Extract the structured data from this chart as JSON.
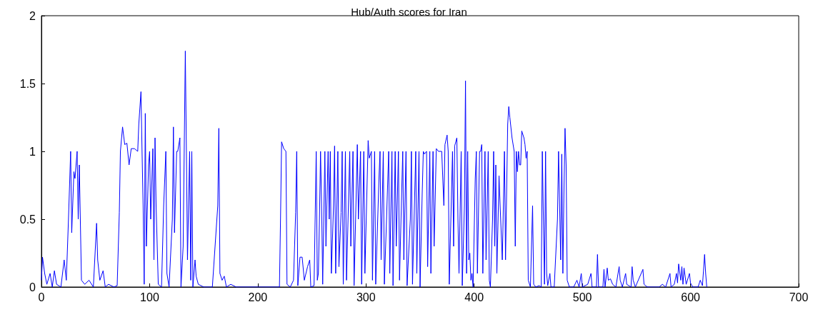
{
  "chart_data": {
    "type": "line",
    "title": "Hub/Auth scores for Iran",
    "xlim": [
      0,
      700
    ],
    "xticks": [
      0,
      100,
      200,
      300,
      400,
      500,
      600,
      700
    ],
    "ylim": [
      0,
      2
    ],
    "yticks": [
      0,
      0.5,
      1,
      1.5,
      2
    ],
    "grid": false,
    "marker": "none",
    "line_style": "solid",
    "series": [
      {
        "color": "#0000ff",
        "x": [
          0,
          1,
          3,
          5,
          8,
          10,
          12,
          14,
          18,
          21,
          23,
          25,
          27,
          28,
          30,
          31,
          33,
          34,
          35,
          37,
          40,
          44,
          48,
          51,
          52,
          54,
          57,
          59,
          62,
          67,
          70,
          72,
          73,
          75,
          77,
          79,
          81,
          83,
          86,
          89,
          90,
          92,
          93,
          94,
          95,
          96,
          97,
          99,
          100,
          101,
          103,
          104,
          105,
          106,
          108,
          111,
          113,
          115,
          116,
          118,
          121,
          122,
          123,
          125,
          126,
          128,
          129,
          131,
          133,
          134,
          135,
          137,
          138,
          139,
          140,
          142,
          143,
          145,
          150,
          158,
          163,
          164,
          165,
          167,
          169,
          171,
          175,
          180,
          220,
          221,
          222,
          224,
          226,
          227,
          230,
          233,
          235,
          236,
          237,
          239,
          241,
          243,
          246,
          248,
          249,
          252,
          253,
          254,
          255,
          256,
          257,
          258,
          259,
          260,
          262,
          263,
          265,
          266,
          267,
          268,
          270,
          271,
          272,
          274,
          275,
          277,
          278,
          279,
          281,
          282,
          285,
          286,
          288,
          289,
          292,
          293,
          295,
          296,
          298,
          299,
          302,
          303,
          305,
          306,
          308,
          309,
          312,
          313,
          314,
          316,
          317,
          319,
          321,
          322,
          324,
          325,
          327,
          328,
          330,
          331,
          333,
          334,
          335,
          337,
          338,
          341,
          342,
          343,
          346,
          347,
          349,
          350,
          352,
          353,
          354,
          356,
          357,
          359,
          360,
          362,
          363,
          365,
          367,
          370,
          372,
          373,
          375,
          376,
          377,
          380,
          381,
          382,
          384,
          385,
          386,
          388,
          389,
          391,
          392,
          393,
          394,
          395,
          396,
          397,
          398,
          399,
          401,
          402,
          403,
          405,
          406,
          407,
          408,
          410,
          411,
          413,
          414,
          415,
          417,
          418,
          419,
          420,
          421,
          423,
          424,
          426,
          428,
          429,
          431,
          432,
          433,
          435,
          437,
          438,
          439,
          440,
          441,
          442,
          443,
          444,
          446,
          447,
          448,
          449,
          450,
          452,
          453,
          454,
          455,
          457,
          460,
          462,
          463,
          464,
          465,
          466,
          467,
          468,
          470,
          471,
          474,
          477,
          478,
          480,
          481,
          482,
          483,
          484,
          485,
          486,
          488,
          492,
          495,
          497,
          499,
          500,
          505,
          508,
          509,
          513,
          514,
          515,
          519,
          520,
          521,
          523,
          524,
          526,
          528,
          531,
          534,
          535,
          537,
          540,
          541,
          545,
          546,
          547,
          549,
          556,
          557,
          560,
          571,
          574,
          577,
          581,
          582,
          585,
          587,
          588,
          589,
          591,
          592,
          593,
          594,
          596,
          599,
          600,
          602,
          607,
          609,
          611,
          612,
          613,
          614,
          615
        ],
        "values": [
          0.05,
          0.22,
          0.1,
          0.02,
          0.1,
          0,
          0.12,
          0.02,
          0,
          0.2,
          0.05,
          0.5,
          1,
          0.4,
          0.85,
          0.8,
          1,
          0.5,
          0.9,
          0.05,
          0.02,
          0.05,
          0,
          0.47,
          0.2,
          0.05,
          0.12,
          0,
          0.02,
          0,
          0.01,
          0.55,
          1,
          1.18,
          1.05,
          1.06,
          0.9,
          1.02,
          1.02,
          1,
          1.2,
          1.44,
          1,
          0.6,
          0.02,
          1.28,
          0.3,
          0.9,
          1,
          0.5,
          1.02,
          0.2,
          1.1,
          0.6,
          0.02,
          0,
          0.6,
          1,
          0.1,
          0,
          0.5,
          1.18,
          0.4,
          1,
          1,
          1.1,
          0,
          0.3,
          1.74,
          1,
          0.2,
          1,
          0.05,
          1,
          0,
          0.2,
          0.08,
          0.02,
          0,
          0,
          0.6,
          1.17,
          0.1,
          0.05,
          0.08,
          0,
          0.02,
          0,
          0,
          0.5,
          1.07,
          1.02,
          1,
          0.02,
          0,
          0.05,
          0.55,
          1,
          0.01,
          0.22,
          0.22,
          0.05,
          0.15,
          0.2,
          0,
          0.01,
          0.5,
          1,
          0.05,
          0.1,
          0.5,
          1,
          0.6,
          0.02,
          1,
          0.3,
          1,
          0.5,
          1,
          0.1,
          0.6,
          1.04,
          0.1,
          1,
          0.15,
          0.55,
          1,
          0.02,
          1,
          0.05,
          1,
          0.3,
          1,
          0.01,
          1.05,
          0.5,
          1,
          0.02,
          1,
          0.1,
          1.08,
          0.95,
          1,
          0.05,
          1,
          0.02,
          0.8,
          1,
          0.2,
          1,
          0.02,
          0.5,
          1,
          0.1,
          1,
          0.01,
          1,
          0.3,
          1,
          0.05,
          0.7,
          1,
          0.2,
          1,
          0.01,
          0.5,
          1,
          0.02,
          1,
          0.1,
          1,
          0,
          0.7,
          1,
          0.98,
          1,
          0.15,
          1,
          0.1,
          1,
          0.3,
          1.02,
          1,
          1,
          0.6,
          1.05,
          1.12,
          1,
          0.02,
          1,
          0.3,
          1.04,
          1.1,
          0.5,
          0.1,
          1,
          0.01,
          0.6,
          1.52,
          0.1,
          1,
          0.2,
          0.25,
          0.05,
          0.1,
          0,
          0.8,
          1,
          0.1,
          1,
          1,
          1.05,
          0.1,
          1,
          0.2,
          1,
          0.05,
          0,
          0.5,
          1,
          0.3,
          0.9,
          0.1,
          0.82,
          0.6,
          0.2,
          1,
          0.2,
          1.2,
          1.33,
          1.25,
          1.1,
          1,
          0.3,
          1,
          0.85,
          1,
          0.9,
          0.9,
          1.15,
          1.1,
          1.05,
          0.95,
          1,
          0.05,
          0,
          0.3,
          0.6,
          0.02,
          0,
          0.01,
          0,
          1,
          0.5,
          0.02,
          1,
          0.1,
          0.01,
          0.1,
          0,
          0,
          0.5,
          1,
          0.2,
          0.98,
          0.1,
          0.7,
          1.17,
          0.9,
          0.05,
          0,
          0,
          0.05,
          0,
          0.1,
          0,
          0.02,
          0.1,
          0,
          0,
          0.24,
          0,
          0,
          0.13,
          0,
          0.14,
          0.05,
          0.06,
          0.02,
          0,
          0.15,
          0.05,
          0,
          0.1,
          0.02,
          0,
          0.15,
          0.05,
          0,
          0.13,
          0.02,
          0,
          0,
          0.02,
          0,
          0.1,
          0,
          0.02,
          0.1,
          0.03,
          0.17,
          0.05,
          0.15,
          0.02,
          0.14,
          0.02,
          0.1,
          0.03,
          0,
          0,
          0.05,
          0.01,
          0.12,
          0.24,
          0.1,
          0
        ]
      }
    ]
  }
}
